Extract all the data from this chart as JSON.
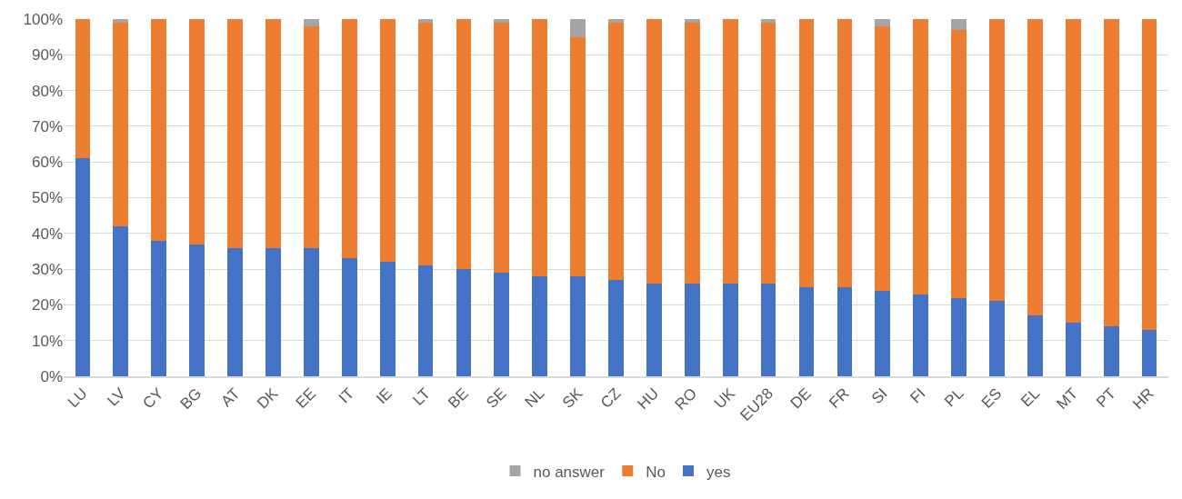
{
  "chart_data": {
    "type": "bar",
    "stacked": true,
    "categories": [
      "LU",
      "LV",
      "CY",
      "BG",
      "AT",
      "DK",
      "EE",
      "IT",
      "IE",
      "LT",
      "BE",
      "SE",
      "NL",
      "SK",
      "CZ",
      "HU",
      "RO",
      "UK",
      "EU28",
      "DE",
      "FR",
      "SI",
      "FI",
      "PL",
      "ES",
      "EL",
      "MT",
      "PT",
      "HR"
    ],
    "series": [
      {
        "name": "yes",
        "color": "#4472c4",
        "values": [
          61,
          42,
          38,
          37,
          36,
          36,
          36,
          33,
          32,
          31,
          30,
          29,
          28,
          28,
          27,
          26,
          26,
          26,
          26,
          25,
          25,
          24,
          23,
          22,
          21,
          17,
          15,
          14,
          13
        ]
      },
      {
        "name": "No",
        "color": "#ed7d31",
        "values": [
          39,
          57,
          62,
          63,
          64,
          64,
          62,
          67,
          68,
          68,
          70,
          70,
          72,
          67,
          72,
          74,
          73,
          74,
          73,
          75,
          75,
          74,
          77,
          75,
          79,
          83,
          85,
          86,
          87
        ]
      },
      {
        "name": "no answer",
        "color": "#a5a5a5",
        "values": [
          0,
          1,
          0,
          0,
          0,
          0,
          2,
          0,
          0,
          1,
          0,
          1,
          0,
          5,
          1,
          0,
          1,
          0,
          1,
          0,
          0,
          2,
          0,
          3,
          0,
          0,
          0,
          0,
          0
        ]
      }
    ],
    "ylim": [
      0,
      100
    ],
    "yticks": [
      {
        "value": 0,
        "label": "0%"
      },
      {
        "value": 10,
        "label": "10%"
      },
      {
        "value": 20,
        "label": "20%"
      },
      {
        "value": 30,
        "label": "30%"
      },
      {
        "value": 40,
        "label": "40%"
      },
      {
        "value": 50,
        "label": "50%"
      },
      {
        "value": 60,
        "label": "60%"
      },
      {
        "value": 70,
        "label": "70%"
      },
      {
        "value": 80,
        "label": "80%"
      },
      {
        "value": 90,
        "label": "90%"
      },
      {
        "value": 100,
        "label": "100%"
      }
    ],
    "grid": "y",
    "legend": "bottom"
  }
}
